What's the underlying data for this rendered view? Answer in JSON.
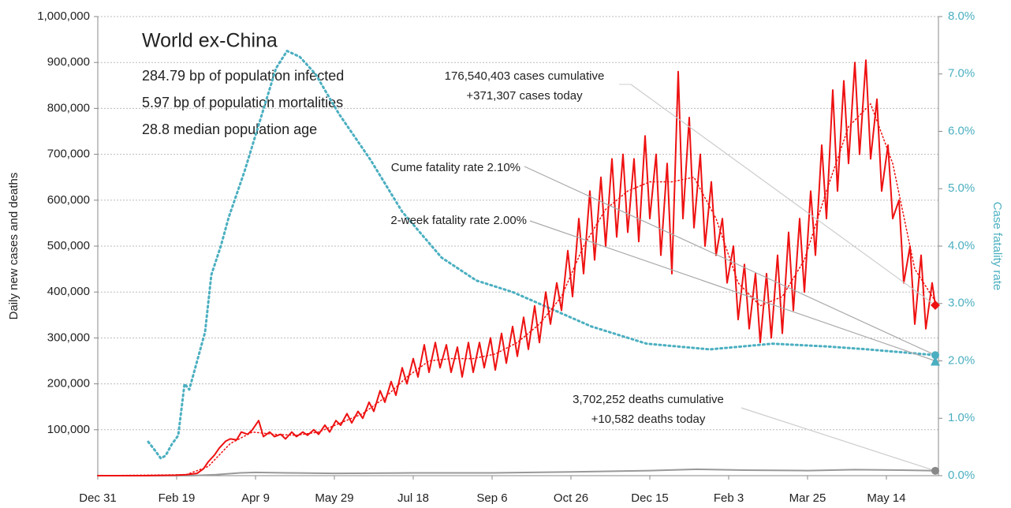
{
  "chart_data": {
    "type": "line",
    "info_title": "World ex-China",
    "info_lines": [
      "284.79 bp of population infected",
      "5.97 bp of population mortalities",
      "28.8 median population age"
    ],
    "ylabel": "Daily new cases and deaths",
    "y2label": "Case fatality rate",
    "xlim": [
      0,
      533
    ],
    "xticks": [
      {
        "value": 0,
        "label": "Dec 31"
      },
      {
        "value": 50,
        "label": "Feb 19"
      },
      {
        "value": 100,
        "label": "Apr 9"
      },
      {
        "value": 150,
        "label": "May 29"
      },
      {
        "value": 200,
        "label": "Jul 18"
      },
      {
        "value": 250,
        "label": "Sep 6"
      },
      {
        "value": 300,
        "label": "Oct 26"
      },
      {
        "value": 350,
        "label": "Dec 15"
      },
      {
        "value": 400,
        "label": "Feb 3"
      },
      {
        "value": 450,
        "label": "Mar 25"
      },
      {
        "value": 500,
        "label": "May 14"
      }
    ],
    "ylim": [
      0,
      1000000
    ],
    "yticks": [
      {
        "value": 100000,
        "label": "100,000"
      },
      {
        "value": 200000,
        "label": "200,000"
      },
      {
        "value": 300000,
        "label": "300,000"
      },
      {
        "value": 400000,
        "label": "400,000"
      },
      {
        "value": 500000,
        "label": "500,000"
      },
      {
        "value": 600000,
        "label": "600,000"
      },
      {
        "value": 700000,
        "label": "700,000"
      },
      {
        "value": 800000,
        "label": "800,000"
      },
      {
        "value": 900000,
        "label": "900,000"
      },
      {
        "value": 1000000,
        "label": "1,000,000"
      }
    ],
    "y2lim": [
      0,
      8
    ],
    "y2ticks": [
      {
        "value": 0,
        "label": "0.0%"
      },
      {
        "value": 1,
        "label": "1.0%"
      },
      {
        "value": 2,
        "label": "2.0%"
      },
      {
        "value": 3,
        "label": "3.0%"
      },
      {
        "value": 4,
        "label": "4.0%"
      },
      {
        "value": 5,
        "label": "5.0%"
      },
      {
        "value": 6,
        "label": "6.0%"
      },
      {
        "value": 7,
        "label": "7.0%"
      },
      {
        "value": 8,
        "label": "8.0%"
      }
    ],
    "grid": true,
    "series": [
      {
        "color": "#999999",
        "style": "solid",
        "x": [
          0,
          60,
          75,
          90,
          100,
          120,
          150,
          200,
          250,
          300,
          350,
          380,
          410,
          450,
          480,
          510,
          531
        ],
        "values": [
          0,
          100,
          2000,
          6000,
          7000,
          6000,
          5000,
          6000,
          6000,
          8000,
          11000,
          14000,
          12000,
          11000,
          13000,
          12000,
          10582
        ]
      },
      {
        "color": "#4bafc0",
        "style": "dotted",
        "axis": "y2",
        "x": [
          32,
          36,
          40,
          43,
          47,
          51,
          55,
          58,
          63,
          68,
          72,
          78,
          83,
          93,
          103,
          113,
          120,
          128,
          138,
          153,
          173,
          193,
          218,
          240,
          263,
          288,
          313,
          348,
          388,
          428,
          463,
          488,
          510,
          531
        ],
        "values": [
          0.59,
          0.45,
          0.3,
          0.35,
          0.55,
          0.7,
          1.6,
          1.5,
          2.0,
          2.5,
          3.5,
          4.0,
          4.5,
          5.3,
          6.2,
          7.1,
          7.4,
          7.3,
          7.0,
          6.3,
          5.5,
          4.6,
          3.8,
          3.4,
          3.2,
          2.9,
          2.6,
          2.3,
          2.2,
          2.3,
          2.25,
          2.2,
          2.15,
          2.1
        ]
      },
      {
        "color": "#ee1111",
        "style": "solid",
        "x": [
          0,
          30,
          49,
          56,
          63,
          67,
          70,
          74,
          77,
          81,
          84,
          88,
          91,
          95,
          98,
          102,
          105,
          109,
          112,
          116,
          119,
          123,
          126,
          130,
          133,
          137,
          140,
          144,
          147,
          151,
          154,
          158,
          161,
          165,
          168,
          172,
          175,
          179,
          182,
          186,
          189,
          193,
          196,
          200,
          203,
          207,
          210,
          214,
          217,
          221,
          224,
          228,
          231,
          235,
          238,
          242,
          245,
          249,
          252,
          256,
          259,
          263,
          266,
          270,
          273,
          277,
          280,
          284,
          287,
          291,
          294,
          298,
          301,
          305,
          308,
          312,
          315,
          319,
          322,
          326,
          329,
          333,
          336,
          340,
          343,
          347,
          350,
          354,
          357,
          361,
          364,
          368,
          371,
          375,
          378,
          382,
          385,
          389,
          392,
          396,
          399,
          403,
          406,
          410,
          413,
          417,
          420,
          424,
          427,
          431,
          434,
          438,
          441,
          445,
          448,
          452,
          455,
          459,
          462,
          466,
          469,
          473,
          476,
          480,
          483,
          487,
          490,
          494,
          497,
          501,
          504,
          508,
          511,
          515,
          518,
          522,
          525,
          529,
          531
        ],
        "values": [
          0,
          0,
          1000,
          2000,
          5000,
          15000,
          30000,
          45000,
          60000,
          75000,
          80000,
          78000,
          95000,
          90000,
          100000,
          120000,
          85000,
          95000,
          85000,
          90000,
          80000,
          95000,
          85000,
          95000,
          88000,
          100000,
          90000,
          110000,
          95000,
          120000,
          110000,
          135000,
          115000,
          140000,
          125000,
          160000,
          140000,
          185000,
          160000,
          205000,
          175000,
          235000,
          200000,
          255000,
          215000,
          285000,
          225000,
          290000,
          235000,
          285000,
          225000,
          280000,
          215000,
          290000,
          225000,
          290000,
          235000,
          300000,
          230000,
          310000,
          245000,
          325000,
          260000,
          345000,
          275000,
          370000,
          290000,
          400000,
          330000,
          420000,
          360000,
          490000,
          390000,
          560000,
          440000,
          620000,
          470000,
          650000,
          500000,
          690000,
          520000,
          700000,
          530000,
          690000,
          510000,
          740000,
          560000,
          700000,
          480000,
          680000,
          440000,
          880000,
          560000,
          780000,
          540000,
          700000,
          500000,
          640000,
          480000,
          560000,
          420000,
          500000,
          340000,
          460000,
          320000,
          440000,
          290000,
          440000,
          300000,
          480000,
          310000,
          530000,
          360000,
          560000,
          400000,
          620000,
          480000,
          720000,
          560000,
          840000,
          620000,
          860000,
          680000,
          900000,
          700000,
          905000,
          690000,
          820000,
          620000,
          720000,
          560000,
          600000,
          420000,
          500000,
          330000,
          480000,
          320000,
          420000,
          371307
        ]
      },
      {
        "color": "#ee1111",
        "style": "dotted",
        "x": [
          0,
          56,
          70,
          84,
          98,
          112,
          126,
          140,
          154,
          168,
          182,
          196,
          210,
          224,
          238,
          252,
          266,
          280,
          294,
          308,
          322,
          336,
          350,
          364,
          378,
          392,
          406,
          420,
          434,
          448,
          462,
          476,
          490,
          504,
          518,
          531
        ],
        "values": [
          0,
          2000,
          20000,
          70000,
          95000,
          90000,
          88000,
          95000,
          115000,
          135000,
          170000,
          215000,
          250000,
          255000,
          255000,
          265000,
          290000,
          330000,
          390000,
          500000,
          580000,
          620000,
          640000,
          640000,
          650000,
          560000,
          420000,
          370000,
          390000,
          470000,
          620000,
          760000,
          810000,
          680000,
          450000,
          380000
        ]
      }
    ],
    "annotations": [
      {
        "lines": [
          "176,540,403 cases cumulative",
          "+371,307 cases today"
        ],
        "x": 531,
        "y": 371307
      },
      {
        "lines": [
          "Cume fatality rate 2.10%"
        ],
        "x": 531,
        "y": 2.1,
        "axis": "y2"
      },
      {
        "lines": [
          "2-week fatality rate 2.00%"
        ],
        "x": 531,
        "y": 2.0,
        "axis": "y2"
      },
      {
        "lines": [
          "3,702,252 deaths cumulative",
          "+10,582 deaths today"
        ],
        "x": 531,
        "y": 10582
      }
    ]
  }
}
